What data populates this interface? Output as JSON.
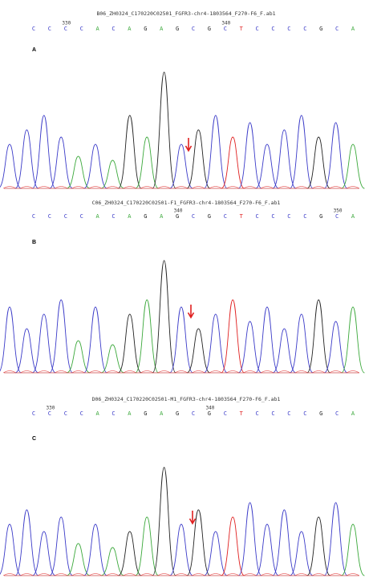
{
  "panels": [
    {
      "label": "A",
      "file": "B06_ZH0324_C170220C02501_FGFR3-chr4-1803564_F270-F6_F.ab1",
      "bases": [
        "C",
        "C",
        "C",
        "C",
        "A",
        "C",
        "A",
        "G",
        "A",
        "G",
        "C",
        "G",
        "C",
        "T",
        "C",
        "C",
        "C",
        "C",
        "G",
        "C",
        "A"
      ],
      "position_labels": [
        null,
        null,
        "330",
        null,
        null,
        null,
        null,
        null,
        null,
        null,
        null,
        null,
        "340",
        null,
        null,
        null,
        null,
        null,
        null,
        null,
        null
      ]
    },
    {
      "label": "B",
      "file": "C06_ZH0324_C170220C02501-F1_FGFR3-chr4-1803564_F270-F6_F.ab1",
      "bases": [
        "C",
        "C",
        "C",
        "C",
        "A",
        "C",
        "A",
        "G",
        "A",
        "G",
        "C",
        "G",
        "C",
        "T",
        "C",
        "C",
        "C",
        "C",
        "G",
        "C",
        "A"
      ],
      "position_labels": [
        null,
        null,
        null,
        null,
        null,
        null,
        null,
        null,
        null,
        "340",
        null,
        null,
        null,
        null,
        null,
        null,
        null,
        null,
        null,
        "350",
        null
      ]
    },
    {
      "label": "C",
      "file": "D06_ZH0324_C170220C02501-M1_FGFR3-chr4-1803564_F270-F6_F.ab1",
      "bases": [
        "C",
        "C",
        "C",
        "C",
        "A",
        "C",
        "A",
        "G",
        "A",
        "G",
        "C",
        "G",
        "C",
        "T",
        "C",
        "C",
        "C",
        "C",
        "G",
        "C",
        "A"
      ],
      "position_labels": [
        null,
        "330",
        null,
        null,
        null,
        null,
        null,
        null,
        null,
        null,
        null,
        "340",
        null,
        null,
        null,
        null,
        null,
        null,
        null,
        null,
        null
      ]
    }
  ]
}
